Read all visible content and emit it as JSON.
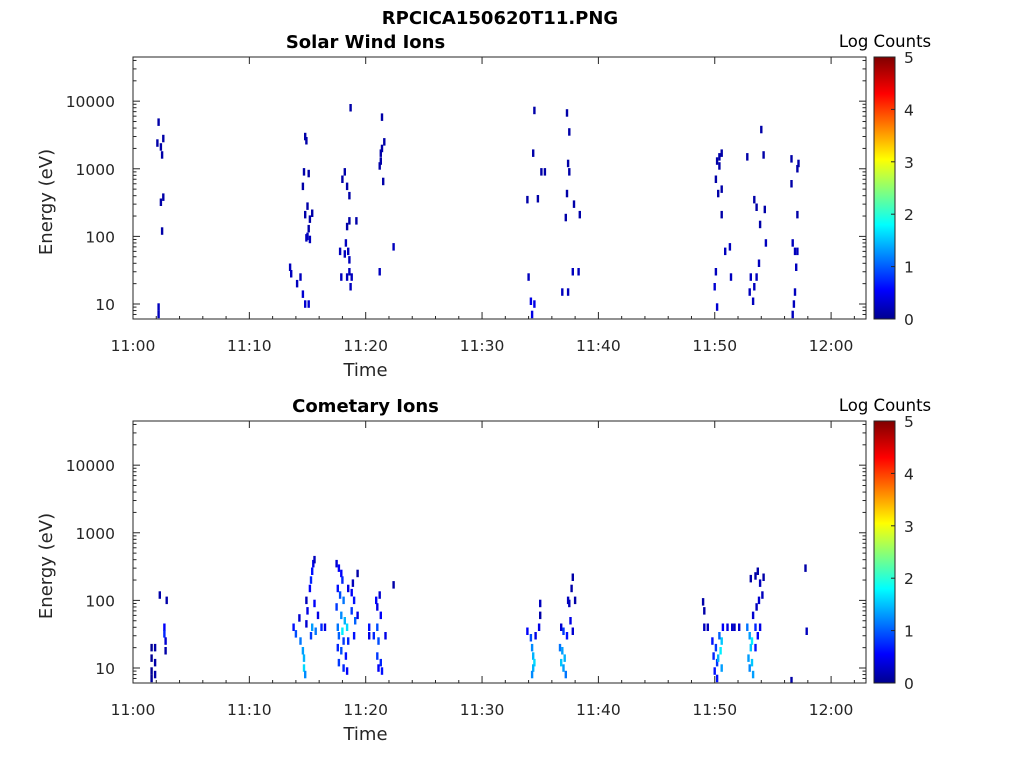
{
  "figure": {
    "title": "RPCICA150620T11.PNG"
  },
  "chart_data": [
    {
      "type": "heatmap",
      "title": "Solar Wind Ions",
      "xlabel": "Time",
      "ylabel": "Energy (eV)",
      "yscale": "log",
      "ylim": [
        6,
        45000
      ],
      "xlim": [
        "11:00",
        "12:03"
      ],
      "xticks": [
        "11:00",
        "11:10",
        "11:20",
        "11:30",
        "11:40",
        "11:50",
        "12:00"
      ],
      "yticks": [
        "10",
        "100",
        "1000",
        "10000"
      ],
      "colorbar": {
        "label": "Log Counts",
        "ticks": [
          "0",
          "1",
          "2",
          "3",
          "4",
          "5"
        ],
        "range": [
          0,
          5
        ],
        "colormap": "jet"
      },
      "grid": false,
      "cells": [
        [
          2.2,
          4900,
          0.2
        ],
        [
          2.1,
          2400,
          0.2
        ],
        [
          2.4,
          2100,
          0.2
        ],
        [
          2.6,
          2800,
          0.2
        ],
        [
          2.5,
          1600,
          0.2
        ],
        [
          2.4,
          320,
          0.2
        ],
        [
          2.6,
          380,
          0.2
        ],
        [
          2.5,
          120,
          0.2
        ],
        [
          2.2,
          9,
          0.3
        ],
        [
          2.2,
          7,
          0.3
        ],
        [
          14.8,
          3000,
          0.2
        ],
        [
          14.9,
          2600,
          0.2
        ],
        [
          14.7,
          900,
          0.2
        ],
        [
          14.6,
          550,
          0.2
        ],
        [
          15.1,
          850,
          0.2
        ],
        [
          15.0,
          280,
          0.2
        ],
        [
          14.8,
          210,
          0.2
        ],
        [
          15.2,
          180,
          0.2
        ],
        [
          15.4,
          220,
          0.2
        ],
        [
          15.1,
          130,
          0.2
        ],
        [
          15.0,
          100,
          0.3
        ],
        [
          15.2,
          90,
          0.3
        ],
        [
          14.9,
          95,
          0.3
        ],
        [
          13.5,
          35,
          0.3
        ],
        [
          13.6,
          28,
          0.3
        ],
        [
          14.1,
          20,
          0.3
        ],
        [
          14.4,
          25,
          0.3
        ],
        [
          14.6,
          14,
          0.4
        ],
        [
          14.8,
          10,
          0.4
        ],
        [
          15.1,
          10,
          0.4
        ],
        [
          18.2,
          900,
          0.2
        ],
        [
          18.0,
          700,
          0.2
        ],
        [
          18.4,
          550,
          0.2
        ],
        [
          18.6,
          400,
          0.2
        ],
        [
          18.7,
          8000,
          0.2
        ],
        [
          18.4,
          140,
          0.2
        ],
        [
          18.6,
          170,
          0.2
        ],
        [
          18.3,
          80,
          0.3
        ],
        [
          18.5,
          60,
          0.3
        ],
        [
          18.2,
          55,
          0.3
        ],
        [
          18.6,
          45,
          0.3
        ],
        [
          17.8,
          60,
          0.3
        ],
        [
          18.6,
          30,
          0.3
        ],
        [
          18.4,
          25,
          0.3
        ],
        [
          18.8,
          25,
          0.3
        ],
        [
          17.9,
          25,
          0.3
        ],
        [
          19.2,
          170,
          0.2
        ],
        [
          18.7,
          18,
          0.3
        ],
        [
          21.4,
          5800,
          0.2
        ],
        [
          21.6,
          2500,
          0.2
        ],
        [
          21.4,
          2000,
          0.2
        ],
        [
          21.3,
          1700,
          0.2
        ],
        [
          21.2,
          1100,
          0.2
        ],
        [
          21.3,
          1300,
          0.2
        ],
        [
          21.5,
          650,
          0.2
        ],
        [
          21.2,
          30,
          0.3
        ],
        [
          22.4,
          70,
          0.3
        ],
        [
          34.5,
          7300,
          0.2
        ],
        [
          34.4,
          1700,
          0.2
        ],
        [
          33.9,
          350,
          0.2
        ],
        [
          34.8,
          360,
          0.2
        ],
        [
          35.1,
          900,
          0.2
        ],
        [
          35.4,
          900,
          0.2
        ],
        [
          34.0,
          25,
          0.3
        ],
        [
          34.2,
          11,
          0.5
        ],
        [
          34.5,
          10,
          0.5
        ],
        [
          34.3,
          7,
          0.5
        ],
        [
          37.3,
          6700,
          0.2
        ],
        [
          37.5,
          3500,
          0.2
        ],
        [
          37.4,
          1200,
          0.2
        ],
        [
          37.5,
          900,
          0.2
        ],
        [
          37.3,
          430,
          0.2
        ],
        [
          37.9,
          300,
          0.2
        ],
        [
          37.2,
          190,
          0.2
        ],
        [
          38.4,
          210,
          0.2
        ],
        [
          37.8,
          30,
          0.3
        ],
        [
          38.3,
          30,
          0.3
        ],
        [
          36.9,
          15,
          0.3
        ],
        [
          37.4,
          15,
          0.3
        ],
        [
          50.2,
          1300,
          0.2
        ],
        [
          50.4,
          1500,
          0.2
        ],
        [
          50.6,
          1700,
          0.2
        ],
        [
          50.4,
          1100,
          0.2
        ],
        [
          50.1,
          700,
          0.2
        ],
        [
          50.6,
          500,
          0.2
        ],
        [
          50.3,
          430,
          0.2
        ],
        [
          50.6,
          210,
          0.2
        ],
        [
          50.9,
          60,
          0.3
        ],
        [
          51.3,
          70,
          0.3
        ],
        [
          50.1,
          30,
          0.3
        ],
        [
          50.0,
          18,
          0.4
        ],
        [
          50.2,
          9,
          0.4
        ],
        [
          51.4,
          25,
          0.3
        ],
        [
          52.8,
          1500,
          0.2
        ],
        [
          53.4,
          350,
          0.2
        ],
        [
          53.6,
          270,
          0.2
        ],
        [
          54.0,
          3800,
          0.2
        ],
        [
          54.2,
          1600,
          0.2
        ],
        [
          54.3,
          250,
          0.2
        ],
        [
          53.9,
          150,
          0.2
        ],
        [
          54.4,
          80,
          0.3
        ],
        [
          53.8,
          40,
          0.3
        ],
        [
          53.6,
          25,
          0.3
        ],
        [
          53.1,
          25,
          0.3
        ],
        [
          53.4,
          18,
          0.3
        ],
        [
          53.0,
          15,
          0.3
        ],
        [
          53.3,
          11,
          0.3
        ],
        [
          56.6,
          1400,
          0.2
        ],
        [
          57.2,
          1200,
          0.2
        ],
        [
          57.1,
          1000,
          0.2
        ],
        [
          56.6,
          600,
          0.2
        ],
        [
          57.1,
          210,
          0.2
        ],
        [
          56.7,
          80,
          0.3
        ],
        [
          56.9,
          60,
          0.3
        ],
        [
          57.1,
          60,
          0.3
        ],
        [
          57.0,
          35,
          0.3
        ],
        [
          56.9,
          15,
          0.3
        ],
        [
          56.8,
          10,
          0.3
        ],
        [
          56.7,
          7,
          0.3
        ]
      ]
    },
    {
      "type": "heatmap",
      "title": "Cometary Ions",
      "xlabel": "Time",
      "ylabel": "Energy (eV)",
      "yscale": "log",
      "ylim": [
        6,
        45000
      ],
      "xlim": [
        "11:00",
        "12:03"
      ],
      "xticks": [
        "11:00",
        "11:10",
        "11:20",
        "11:30",
        "11:40",
        "11:50",
        "12:00"
      ],
      "yticks": [
        "10",
        "100",
        "1000",
        "10000"
      ],
      "colorbar": {
        "label": "Log Counts",
        "ticks": [
          "0",
          "1",
          "2",
          "3",
          "4",
          "5"
        ],
        "range": [
          0,
          5
        ],
        "colormap": "jet"
      },
      "grid": false,
      "cells": [
        [
          1.6,
          20,
          0.1
        ],
        [
          1.6,
          14,
          0.1
        ],
        [
          1.6,
          9,
          0.1
        ],
        [
          1.6,
          7,
          0.1
        ],
        [
          1.9,
          20,
          0.2
        ],
        [
          1.9,
          12,
          0.2
        ],
        [
          1.9,
          8,
          0.2
        ],
        [
          2.3,
          120,
          0.2
        ],
        [
          2.9,
          100,
          0.2
        ],
        [
          2.7,
          40,
          0.6
        ],
        [
          2.7,
          32,
          0.8
        ],
        [
          2.8,
          25,
          0.4
        ],
        [
          2.8,
          18,
          0.2
        ],
        [
          13.8,
          40,
          0.7
        ],
        [
          14.0,
          32,
          1.0
        ],
        [
          14.4,
          25,
          1.2
        ],
        [
          14.6,
          18,
          1.4
        ],
        [
          14.7,
          14,
          1.5
        ],
        [
          14.7,
          10,
          1.7
        ],
        [
          14.8,
          8,
          1.3
        ],
        [
          14.3,
          55,
          0.4
        ],
        [
          14.9,
          100,
          0.3
        ],
        [
          15.0,
          70,
          0.5
        ],
        [
          15.2,
          150,
          0.6
        ],
        [
          15.3,
          200,
          0.8
        ],
        [
          15.4,
          270,
          0.7
        ],
        [
          15.5,
          350,
          0.5
        ],
        [
          15.6,
          400,
          0.3
        ],
        [
          15.6,
          90,
          0.6
        ],
        [
          15.9,
          60,
          0.5
        ],
        [
          15.4,
          40,
          1.4
        ],
        [
          15.7,
          35,
          1.2
        ],
        [
          15.3,
          30,
          0.9
        ],
        [
          16.2,
          40,
          0.8
        ],
        [
          16.5,
          40,
          0.5
        ],
        [
          14.9,
          45,
          0.4
        ],
        [
          17.5,
          350,
          0.4
        ],
        [
          17.7,
          300,
          0.6
        ],
        [
          17.9,
          250,
          0.6
        ],
        [
          18.0,
          200,
          0.8
        ],
        [
          17.6,
          150,
          0.7
        ],
        [
          17.8,
          120,
          1.0
        ],
        [
          18.1,
          100,
          1.2
        ],
        [
          17.5,
          80,
          0.9
        ],
        [
          17.9,
          60,
          1.3
        ],
        [
          18.2,
          50,
          1.5
        ],
        [
          17.6,
          40,
          1.2
        ],
        [
          18.0,
          35,
          1.8
        ],
        [
          18.4,
          40,
          1.7
        ],
        [
          17.7,
          30,
          1.1
        ],
        [
          18.1,
          25,
          0.9
        ],
        [
          18.5,
          25,
          0.8
        ],
        [
          17.6,
          20,
          0.8
        ],
        [
          17.9,
          18,
          1.0
        ],
        [
          18.3,
          15,
          0.7
        ],
        [
          17.7,
          12,
          0.9
        ],
        [
          18.1,
          10,
          0.8
        ],
        [
          18.4,
          9,
          0.6
        ],
        [
          18.5,
          150,
          0.5
        ],
        [
          18.8,
          130,
          0.6
        ],
        [
          19.0,
          100,
          0.7
        ],
        [
          18.8,
          70,
          0.9
        ],
        [
          19.1,
          50,
          1.1
        ],
        [
          19.3,
          60,
          0.5
        ],
        [
          19.0,
          30,
          0.7
        ],
        [
          18.9,
          180,
          0.3
        ],
        [
          19.3,
          250,
          0.2
        ],
        [
          20.3,
          40,
          0.7
        ],
        [
          20.3,
          30,
          0.5
        ],
        [
          20.7,
          30,
          0.8
        ],
        [
          20.9,
          100,
          0.6
        ],
        [
          21.0,
          80,
          0.5
        ],
        [
          21.2,
          120,
          0.4
        ],
        [
          21.3,
          60,
          0.6
        ],
        [
          21.0,
          40,
          1.0
        ],
        [
          21.1,
          25,
          1.0
        ],
        [
          21.0,
          15,
          0.9
        ],
        [
          21.3,
          12,
          0.8
        ],
        [
          21.1,
          10,
          0.6
        ],
        [
          21.4,
          9,
          0.7
        ],
        [
          21.7,
          30,
          0.5
        ],
        [
          22.4,
          170,
          0.2
        ],
        [
          33.9,
          35,
          0.6
        ],
        [
          34.2,
          28,
          1.0
        ],
        [
          34.3,
          20,
          1.3
        ],
        [
          34.4,
          15,
          1.5
        ],
        [
          34.5,
          12,
          1.7
        ],
        [
          34.4,
          10,
          1.5
        ],
        [
          34.3,
          8,
          1.3
        ],
        [
          34.6,
          30,
          0.5
        ],
        [
          34.9,
          40,
          0.5
        ],
        [
          35.0,
          90,
          0.3
        ],
        [
          35.0,
          60,
          0.2
        ],
        [
          36.7,
          20,
          1.2
        ],
        [
          36.9,
          18,
          1.4
        ],
        [
          37.1,
          14,
          1.5
        ],
        [
          36.8,
          12,
          1.6
        ],
        [
          37.0,
          10,
          1.4
        ],
        [
          37.2,
          8,
          1.2
        ],
        [
          37.0,
          35,
          0.9
        ],
        [
          37.3,
          30,
          0.7
        ],
        [
          37.6,
          50,
          0.5
        ],
        [
          37.8,
          35,
          0.4
        ],
        [
          37.5,
          90,
          0.3
        ],
        [
          37.7,
          150,
          0.2
        ],
        [
          37.8,
          220,
          0.2
        ],
        [
          37.4,
          100,
          0.3
        ],
        [
          38.0,
          100,
          0.2
        ],
        [
          36.8,
          40,
          0.4
        ],
        [
          49.0,
          95,
          0.2
        ],
        [
          49.1,
          70,
          0.2
        ],
        [
          49.1,
          40,
          0.3
        ],
        [
          49.4,
          40,
          0.3
        ],
        [
          49.8,
          25,
          0.7
        ],
        [
          50.1,
          20,
          0.9
        ],
        [
          49.9,
          15,
          0.8
        ],
        [
          50.2,
          12,
          0.9
        ],
        [
          50.0,
          9,
          0.7
        ],
        [
          50.2,
          7,
          0.7
        ],
        [
          50.4,
          30,
          1.1
        ],
        [
          50.6,
          25,
          1.6
        ],
        [
          50.5,
          18,
          1.8
        ],
        [
          50.3,
          14,
          1.5
        ],
        [
          50.6,
          10,
          1.4
        ],
        [
          50.7,
          40,
          0.6
        ],
        [
          51.1,
          40,
          0.5
        ],
        [
          51.5,
          40,
          0.4
        ],
        [
          51.7,
          40,
          0.3
        ],
        [
          52.1,
          40,
          0.4
        ],
        [
          52.8,
          40,
          1.2
        ],
        [
          53.0,
          30,
          1.4
        ],
        [
          53.2,
          25,
          1.8
        ],
        [
          53.1,
          20,
          1.6
        ],
        [
          52.9,
          14,
          1.4
        ],
        [
          53.2,
          12,
          1.6
        ],
        [
          53.0,
          10,
          1.3
        ],
        [
          53.3,
          8,
          1.4
        ],
        [
          53.5,
          40,
          0.8
        ],
        [
          53.7,
          30,
          0.6
        ],
        [
          53.9,
          40,
          0.5
        ],
        [
          53.3,
          60,
          0.4
        ],
        [
          53.6,
          80,
          0.3
        ],
        [
          53.8,
          100,
          0.4
        ],
        [
          54.1,
          120,
          0.3
        ],
        [
          53.9,
          180,
          0.3
        ],
        [
          54.2,
          220,
          0.2
        ],
        [
          53.5,
          230,
          0.2
        ],
        [
          53.1,
          210,
          0.2
        ],
        [
          53.7,
          270,
          0.2
        ],
        [
          53.5,
          20,
          0.7
        ],
        [
          56.6,
          6.5,
          0.2
        ],
        [
          57.8,
          300,
          0.2
        ],
        [
          57.9,
          35,
          0.3
        ]
      ]
    }
  ]
}
